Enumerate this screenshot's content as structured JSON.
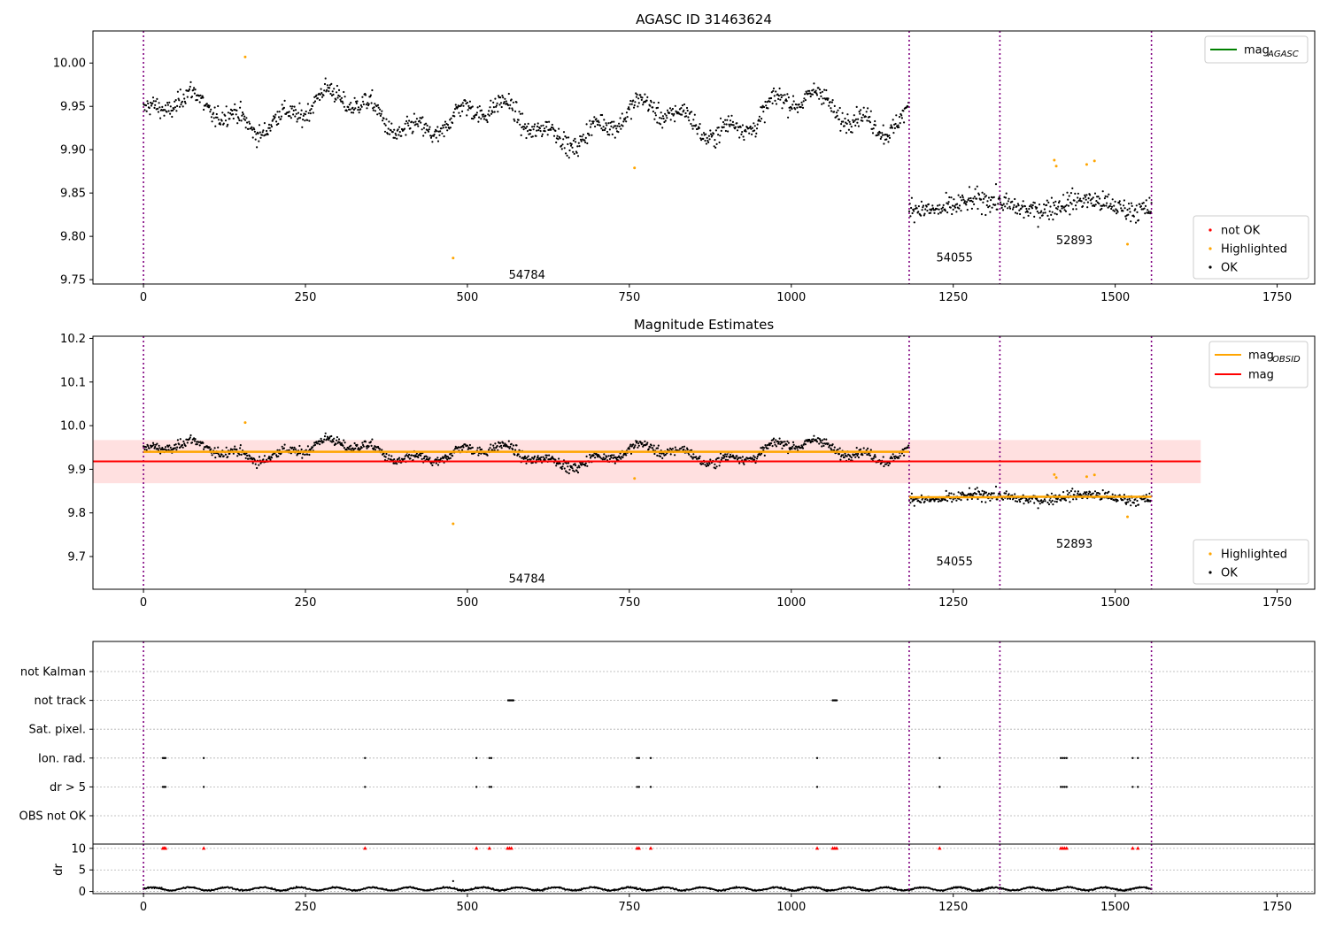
{
  "colors": {
    "ok": "#000000",
    "highlighted": "#ffa500",
    "not_ok": "#ff0000",
    "agasc_line": "#008000",
    "obsid_line": "#ffa500",
    "mag_line": "#ff0000",
    "mag_band": "#ffe0e0",
    "obs_boundary": "#800080"
  },
  "chart_data": [
    {
      "type": "scatter",
      "title": "AGASC ID 31463624",
      "xlim": [
        -78,
        1808
      ],
      "ylim": [
        9.745,
        10.037
      ],
      "x_ticks": [
        0,
        250,
        500,
        750,
        1000,
        1250,
        1500,
        1750
      ],
      "y_ticks": [
        9.75,
        9.8,
        9.85,
        9.9,
        9.95,
        10.0
      ],
      "y_tick_labels": [
        "9.75",
        "9.80",
        "9.85",
        "9.90",
        "9.95",
        "10.00"
      ],
      "obs_boundaries": [
        0,
        1182,
        1322,
        1556
      ],
      "observations": [
        {
          "label": "54784",
          "start": 0,
          "end": 1182,
          "mean": 9.937,
          "label_x": 592,
          "label_y": 9.755
        },
        {
          "label": "54055",
          "start": 1182,
          "end": 1322,
          "mean": 9.836,
          "label_x": 1252,
          "label_y": 9.775
        },
        {
          "label": "52893",
          "start": 1322,
          "end": 1556,
          "mean": 9.837,
          "label_x": 1437,
          "label_y": 9.795
        }
      ],
      "highlighted_points": [
        [
          157,
          10.007
        ],
        [
          478,
          9.775
        ],
        [
          758,
          9.879
        ],
        [
          1406,
          9.888
        ],
        [
          1409,
          9.881
        ],
        [
          1456,
          9.883
        ],
        [
          1468,
          9.887
        ],
        [
          1519,
          9.791
        ]
      ],
      "legend": {
        "position": "top-right",
        "entries": [
          {
            "label": "mag",
            "subscript": "AGASC"
          }
        ]
      },
      "scatter_legend": {
        "position": "bottom-right",
        "entries": [
          "not OK",
          "Highlighted",
          "OK"
        ]
      }
    },
    {
      "type": "scatter",
      "title": "Magnitude Estimates",
      "xlim": [
        -78,
        1808
      ],
      "ylim": [
        9.625,
        10.205
      ],
      "x_ticks": [
        0,
        250,
        500,
        750,
        1000,
        1250,
        1500,
        1750
      ],
      "y_ticks": [
        9.7,
        9.8,
        9.9,
        10.0,
        10.1,
        10.2
      ],
      "y_tick_labels": [
        "9.7",
        "9.8",
        "9.9",
        "10.0",
        "10.1",
        "10.2"
      ],
      "obs_boundaries": [
        0,
        1182,
        1322,
        1556
      ],
      "mag_obsid": [
        {
          "label": "54784",
          "start": 0,
          "end": 1182,
          "value": 9.94,
          "label_x": 592,
          "label_y": 9.648
        },
        {
          "label": "54055",
          "start": 1182,
          "end": 1322,
          "value": 9.836,
          "label_x": 1252,
          "label_y": 9.688
        },
        {
          "label": "52893",
          "start": 1322,
          "end": 1556,
          "value": 9.837,
          "label_x": 1437,
          "label_y": 9.728
        }
      ],
      "mag": {
        "value": 9.918,
        "band_low": 9.868,
        "band_high": 9.967,
        "x_start": -78,
        "x_end": 1632
      },
      "highlighted_points": [
        [
          157,
          10.007
        ],
        [
          478,
          9.775
        ],
        [
          758,
          9.879
        ],
        [
          1406,
          9.888
        ],
        [
          1409,
          9.881
        ],
        [
          1456,
          9.883
        ],
        [
          1468,
          9.887
        ],
        [
          1519,
          9.791
        ]
      ],
      "legend": {
        "position": "top-right",
        "entries": [
          {
            "label": "mag",
            "subscript": "OBSID"
          },
          {
            "label": "mag",
            "subscript": ""
          }
        ]
      },
      "scatter_legend": {
        "position": "bottom-right",
        "entries": [
          "Highlighted",
          "OK"
        ]
      }
    },
    {
      "type": "scatter",
      "title": "",
      "xlim": [
        -78,
        1808
      ],
      "x_ticks": [
        0,
        250,
        500,
        750,
        1000,
        1250,
        1500,
        1750
      ],
      "obs_boundaries": [
        0,
        1182,
        1322,
        1556
      ],
      "flag_rows": [
        "not Kalman",
        "not track",
        "Sat. pixel.",
        "Ion. rad.",
        "dr > 5",
        "OBS not OK"
      ],
      "flags": {
        "not track": [
          563,
          565,
          567,
          569,
          571,
          1064,
          1066,
          1068,
          1070
        ],
        "Ion. rad.": [
          30,
          32,
          34,
          93,
          342,
          514,
          534,
          537,
          762,
          765,
          783,
          1040,
          1229,
          1416,
          1419,
          1422,
          1425,
          1527,
          1535
        ],
        "dr > 5": [
          30,
          32,
          34,
          93,
          342,
          514,
          534,
          537,
          762,
          765,
          783,
          1040,
          1229,
          1416,
          1419,
          1422,
          1425,
          1527,
          1535
        ]
      },
      "dr_ylabel": "dr",
      "dr_ylim": [
        -0.5,
        11
      ],
      "dr_y_ticks": [
        0,
        5,
        10
      ],
      "dr_red_points": [
        30,
        32,
        34,
        93,
        342,
        514,
        534,
        562,
        565,
        568,
        762,
        765,
        783,
        1040,
        1064,
        1067,
        1070,
        1229,
        1416,
        1419,
        1422,
        1425,
        1527,
        1535
      ],
      "dr_outliers": [
        [
          478,
          2.4
        ]
      ]
    }
  ]
}
